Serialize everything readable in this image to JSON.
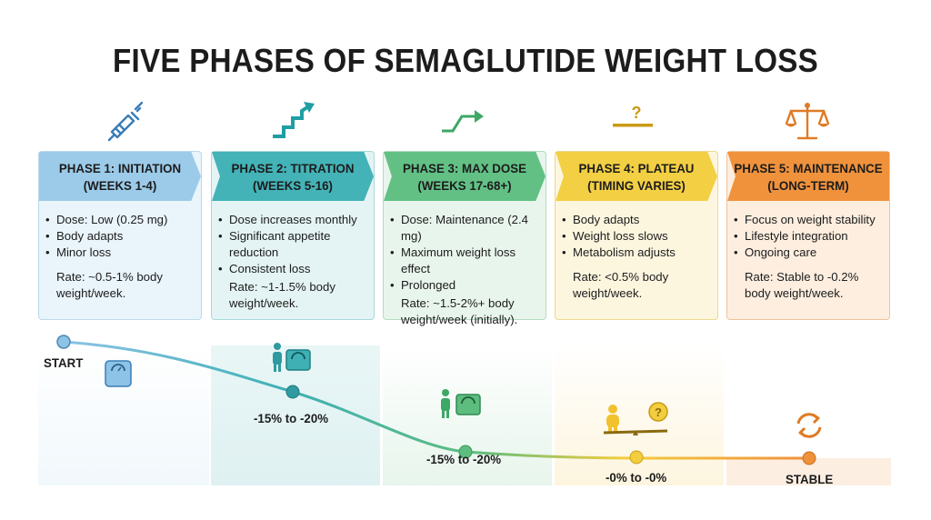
{
  "title": "FIVE PHASES OF SEMAGLUTIDE WEIGHT LOSS",
  "colors": {
    "phase1": "#8cc3e6",
    "phase2": "#3fb0b4",
    "phase3": "#5cbd7f",
    "phase4": "#f2cd3e",
    "phase5": "#ef913b"
  },
  "phases": [
    {
      "icon": "syringe-icon",
      "title_line1": "PHASE 1: INITIATION",
      "title_line2": "(WEEKS 1-4)",
      "bullets": [
        "Dose: Low (0.25 mg)",
        "Body adapts",
        "Minor loss"
      ],
      "rate_line1": "Rate: ~0.5-1% body",
      "rate_line2": "weight/week."
    },
    {
      "icon": "stairs-arrow-icon",
      "title_line1": "PHASE 2: TITRATION",
      "title_line2": "(WEEKS 5-16)",
      "bullets": [
        "Dose increases monthly",
        "Significant appetite reduction",
        "Consistent loss"
      ],
      "rate_line1": "Rate: ~1-1.5% body",
      "rate_line2": "weight/week."
    },
    {
      "icon": "step-arrow-icon",
      "title_line1": "PHASE 3: MAX DOSE",
      "title_line2": "(WEEKS 17-68+)",
      "bullets": [
        "Dose: Maintenance (2.4 mg)",
        "Maximum weight loss effect",
        "Prolonged"
      ],
      "rate_line1": "Rate: ~1.5-2%+ body",
      "rate_line2": "weight/week (initially)."
    },
    {
      "icon": "plateau-question-icon",
      "title_line1": "PHASE 4: PLATEAU",
      "title_line2": "(TIMING VARIES)",
      "bullets": [
        "Body adapts",
        "Weight loss slows",
        "Metabolism adjusts"
      ],
      "rate_line1": "Rate: <0.5% body",
      "rate_line2": "weight/week."
    },
    {
      "icon": "balance-scale-icon",
      "title_line1": "PHASE 5: MAINTENANCE",
      "title_line2": "(LONG-TERM)",
      "bullets": [
        "Focus on weight stability",
        "Lifestyle integration",
        "Ongoing care"
      ],
      "rate_line1": "Rate: Stable to -0.2%",
      "rate_line2": "body weight/week."
    }
  ],
  "journey": {
    "start_label": "START",
    "point2_label": "-15% to -20%",
    "point3_label": "-15% to -20%",
    "point4_label": "-0% to -0%",
    "end_label": "STABLE"
  }
}
